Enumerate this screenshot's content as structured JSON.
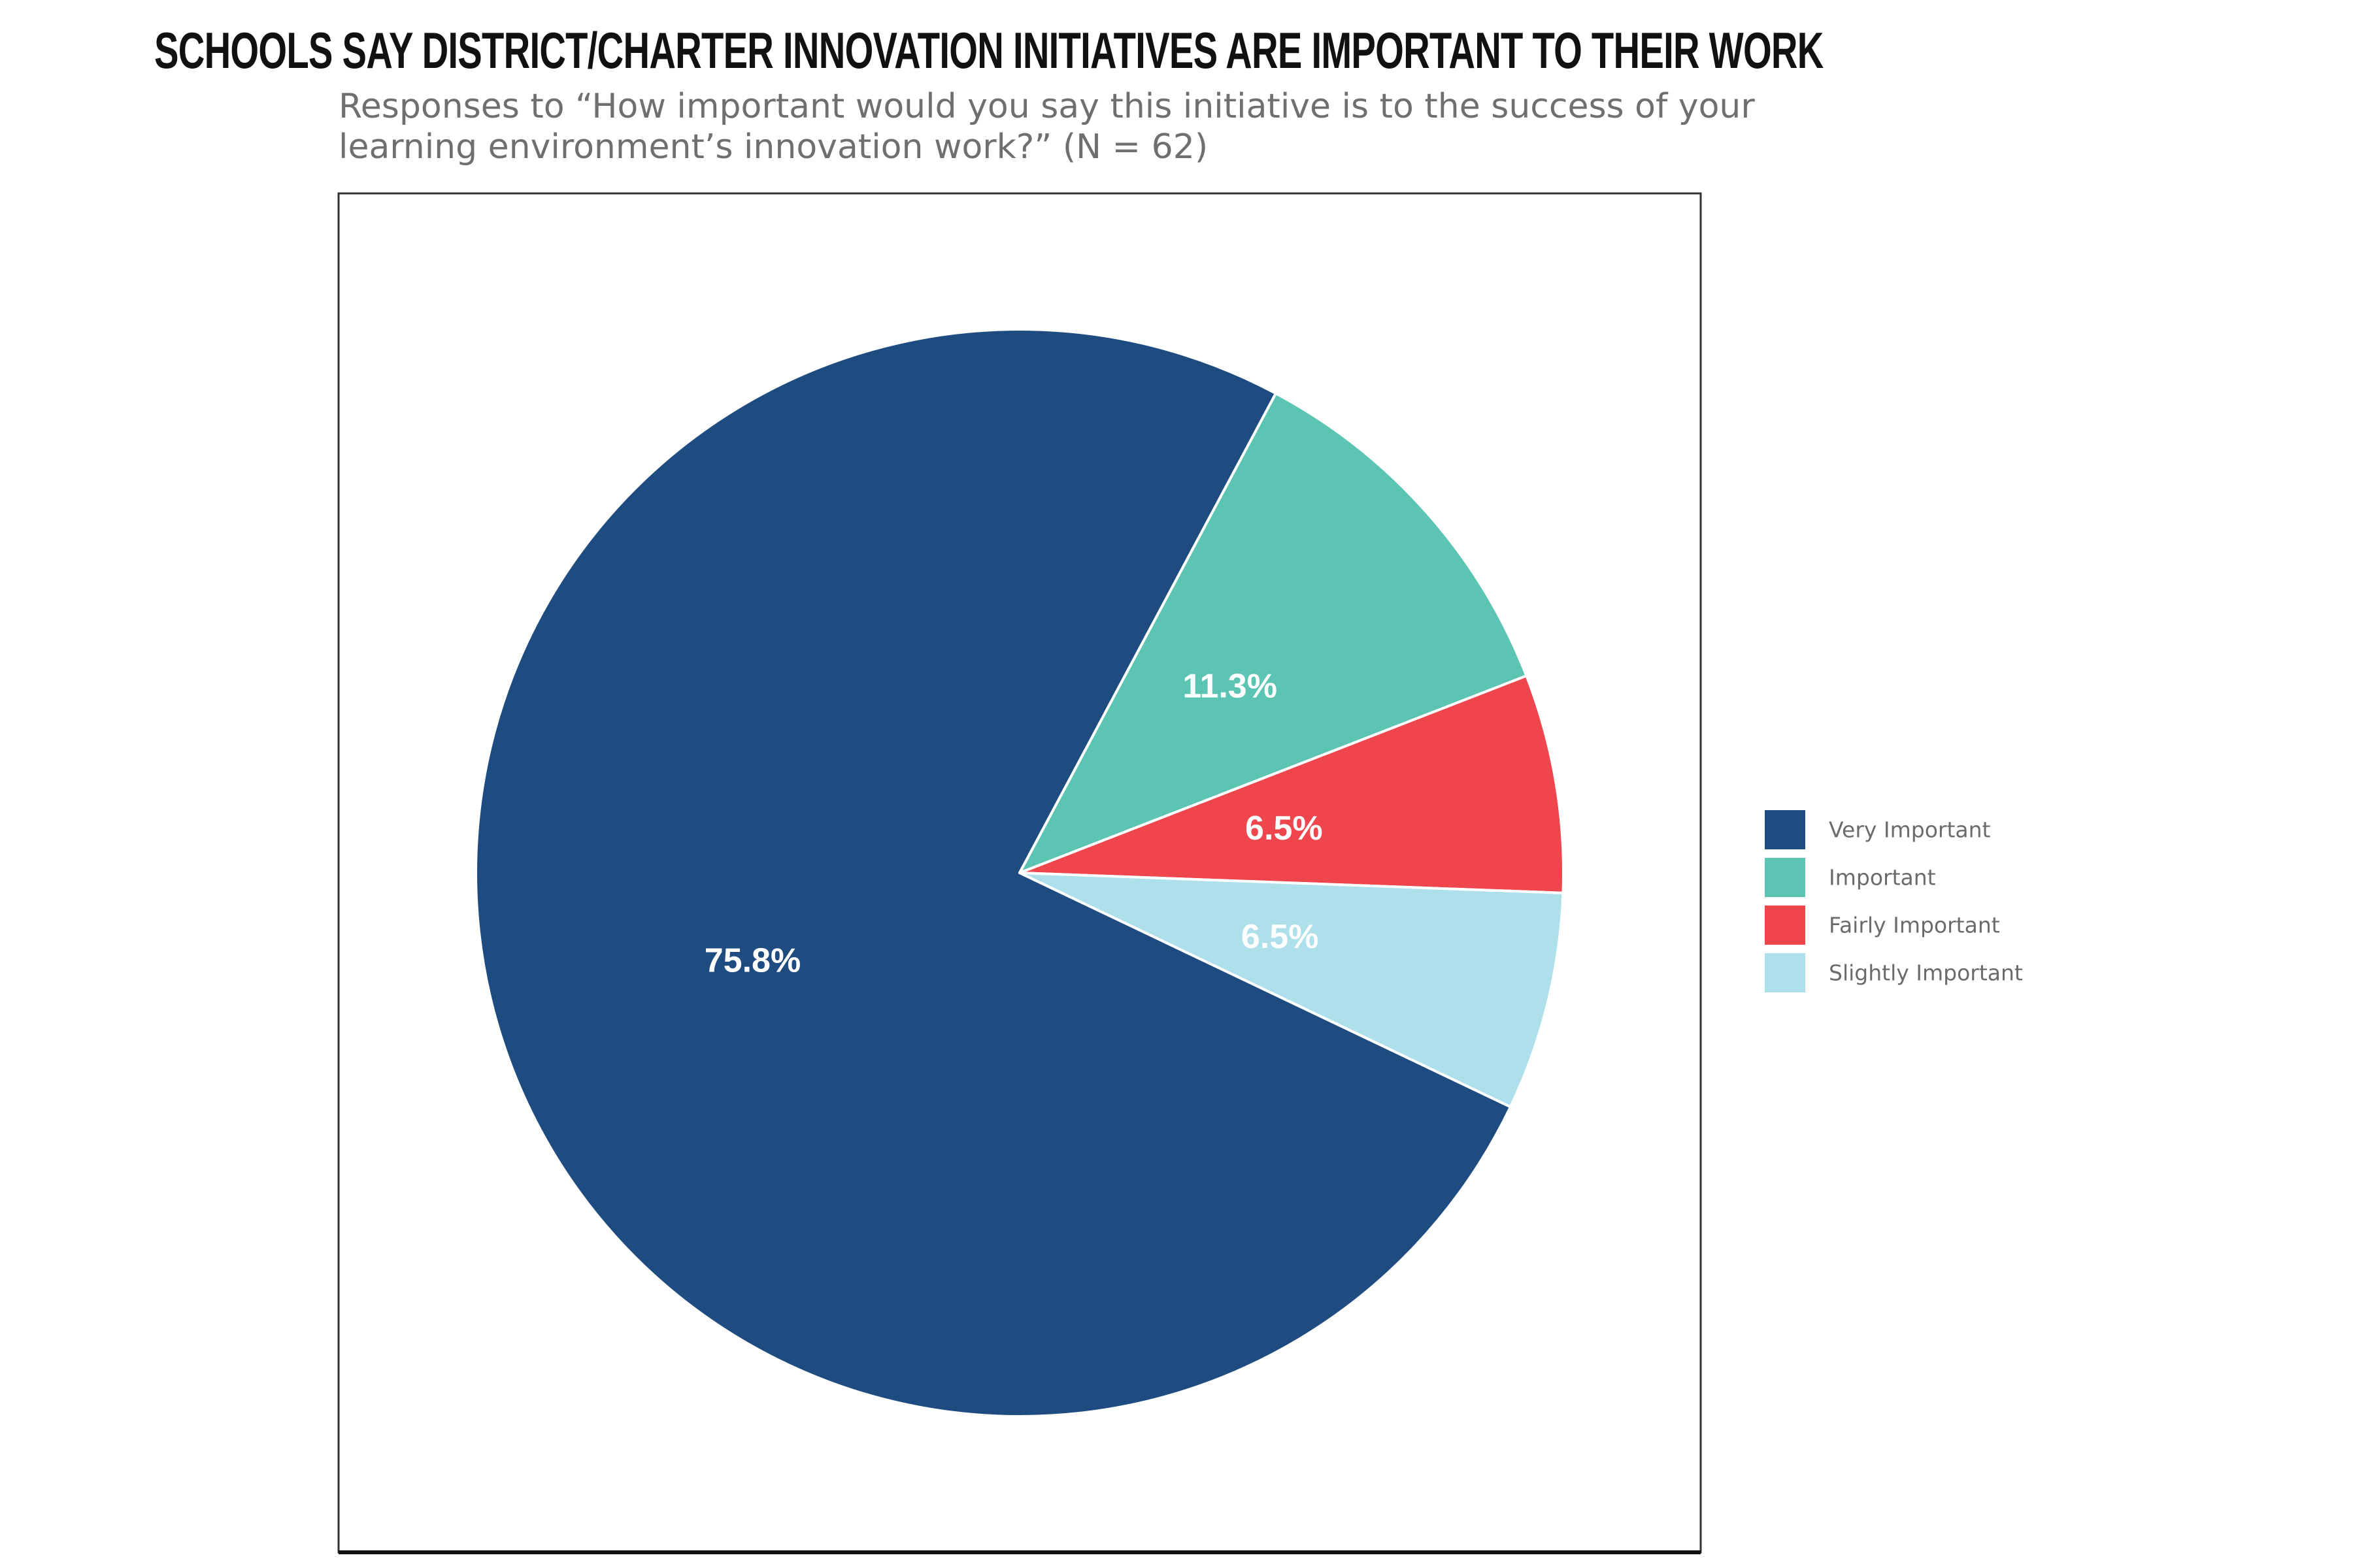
{
  "chart_data": {
    "type": "pie",
    "title": "SCHOOLS SAY DISTRICT/CHARTER INNOVATION INITIATIVES ARE IMPORTANT TO THEIR WORK",
    "subtitle": "Responses to “How important would you say this initiative is to the success of your learning environment’s innovation work?” (N = 62)",
    "legend_position": "right",
    "slices": [
      {
        "label": "Very Important",
        "value": 75.8,
        "display": "75.8%",
        "color": "#1f4c80"
      },
      {
        "label": "Important",
        "value": 11.3,
        "display": "11.3%",
        "color": "#5bc4b3"
      },
      {
        "label": "Fairly Important",
        "value": 6.5,
        "display": "6.5%",
        "color": "#ef464e"
      },
      {
        "label": "Slightly Important",
        "value": 6.5,
        "display": "6.5%",
        "color": "#aee0ec"
      }
    ]
  }
}
